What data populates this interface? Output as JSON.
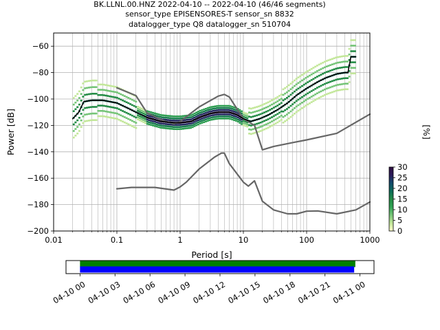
{
  "title_lines": [
    "BK.LLNL.00.HNZ   2022-04-10 -- 2022-04-10  (46/46 segments)",
    "sensor_type EPISENSORES-T sensor_sn 8832",
    "datalogger_type Q8 datalogger_sn 510704"
  ],
  "chart_data": [
    {
      "type": "heatmap",
      "xlabel": "Period [s]",
      "ylabel": "Power [dB]",
      "xscale": "log",
      "xlim": [
        0.01,
        1000
      ],
      "ylim": [
        -200,
        -50
      ],
      "grid": true,
      "x_tick_labels": [
        "0.01",
        "0.1",
        "1",
        "10",
        "100",
        "1000"
      ],
      "y_tick_labels": [
        "−200",
        "−180",
        "−160",
        "−140",
        "−120",
        "−100",
        "−80",
        "−60"
      ],
      "y_ticks": [
        -200,
        -180,
        -160,
        -140,
        -120,
        -100,
        -80,
        -60
      ],
      "colorbar": {
        "label": "[%]",
        "range": [
          0,
          30
        ],
        "tick_labels": [
          "0",
          "5",
          "10",
          "15",
          "20",
          "25",
          "30"
        ],
        "colors": [
          "#ffffcc",
          "#c2e699",
          "#78c679",
          "#31a354",
          "#238b45",
          "#0c6b58",
          "#114a6b",
          "#2b1a5a",
          "#301040"
        ]
      },
      "series": [
        {
          "name": "",
          "color": "#000000",
          "x": [
            0.02,
            0.025,
            0.03,
            0.04,
            0.06,
            0.1,
            0.15,
            0.2,
            0.3,
            0.5,
            0.8,
            1.0,
            1.5,
            2.0,
            3.0,
            4.0,
            5.0,
            6.0,
            8.0,
            10.0,
            13.0,
            18.0,
            25.0,
            35.0,
            50.0,
            70.0,
            100.0,
            150.0,
            200.0,
            300.0,
            400.0,
            450.0,
            500.0,
            550.0,
            600.0
          ],
          "y": [
            -115,
            -110,
            -102,
            -101,
            -101,
            -103,
            -107,
            -110,
            -114,
            -117,
            -118,
            -118,
            -117,
            -114,
            -111,
            -110,
            -110,
            -110,
            -112,
            -115,
            -117,
            -115,
            -112,
            -108,
            -103,
            -97,
            -92,
            -87,
            -84,
            -81,
            -80,
            -80,
            -68,
            -68,
            -68
          ]
        },
        {
          "name": "",
          "color": "#666666",
          "x": [
            0.1,
            0.2,
            0.3,
            0.5,
            0.8,
            1.0,
            2.0,
            4.0,
            5.0,
            6.0,
            10.0,
            15.0,
            20.0,
            30.0,
            60.0,
            100.0,
            300.0,
            1000.0
          ],
          "y": [
            -91.5,
            -97.4,
            -110.5,
            -115.7,
            -119.0,
            -117.0,
            -106.0,
            -97.8,
            -96.5,
            -98.5,
            -115.0,
            -120.0,
            -138.5,
            -136.0,
            -133.0,
            -131.0,
            -126.0,
            -111.5
          ]
        },
        {
          "name": "",
          "color": "#666666",
          "x": [
            0.1,
            0.17,
            0.4,
            0.8,
            1.0,
            1.25,
            2.0,
            3.5,
            4.5,
            5.0,
            6.0,
            10.0,
            12.0,
            15.0,
            20.0,
            30.0,
            50.0,
            70.0,
            100.0,
            150.0,
            300.0,
            600.0,
            1000.0
          ],
          "y": [
            -168.0,
            -167.0,
            -167.0,
            -169.0,
            -166.6,
            -163.0,
            -153.0,
            -144.0,
            -141.0,
            -141.0,
            -149.0,
            -163.0,
            -166.0,
            -162.0,
            -177.5,
            -184.0,
            -187.0,
            -187.0,
            -185.0,
            -184.8,
            -187.0,
            -184.0,
            -178.0
          ]
        }
      ]
    },
    {
      "type": "bar",
      "x_tick_labels": [
        "04-10 00",
        "04-10 03",
        "04-10 06",
        "04-10 09",
        "04-10 12",
        "04-10 15",
        "04-10 18",
        "04-10 21",
        "04-11 00"
      ],
      "x_ticks_hours": [
        0,
        3,
        6,
        9,
        12,
        15,
        18,
        21,
        24
      ],
      "xlim_hours": [
        -1.2,
        25.2
      ],
      "series": [
        {
          "name": "",
          "color": "#008000",
          "start_hour": 0.0,
          "end_hour": 23.6
        },
        {
          "name": "",
          "color": "#0000ff",
          "start_hour": 0.0,
          "end_hour": 23.5
        }
      ]
    }
  ]
}
